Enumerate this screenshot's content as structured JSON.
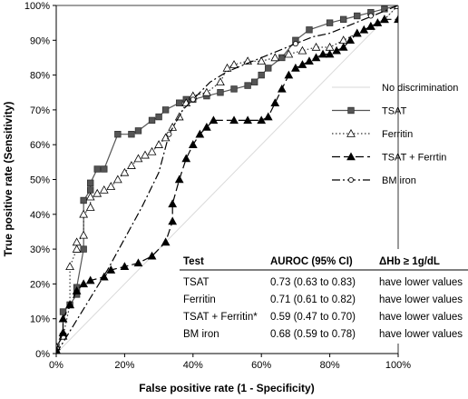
{
  "chart_data": {
    "type": "line",
    "xlabel": "False positive rate (1 - Specificity)",
    "ylabel": "True positive rate (Sensitivity)",
    "xlim": [
      0,
      100
    ],
    "ylim": [
      0,
      100
    ],
    "xticks": [
      "0%",
      "20%",
      "40%",
      "60%",
      "80%",
      "100%"
    ],
    "yticks": [
      "0%",
      "10%",
      "20%",
      "30%",
      "40%",
      "50%",
      "60%",
      "70%",
      "80%",
      "90%",
      "100%"
    ],
    "grid": false,
    "legend_position": "right",
    "reference_line": {
      "name": "No discrimination",
      "x": [
        0,
        100
      ],
      "y": [
        0,
        100
      ],
      "color": "#d9d9d9"
    },
    "series": [
      {
        "name": "TSAT",
        "marker": "square-filled",
        "line": "solid",
        "color": "#555555",
        "x": [
          0,
          0,
          2,
          2,
          4,
          6,
          6,
          8,
          8,
          10,
          10,
          12,
          14,
          18,
          22,
          24,
          28,
          30,
          32,
          36,
          38,
          40,
          44,
          48,
          52,
          56,
          58,
          60,
          62,
          66,
          70,
          74,
          80,
          84,
          88,
          92,
          96,
          100
        ],
        "y": [
          0,
          2,
          5,
          12,
          14,
          17,
          19,
          30,
          44,
          47,
          49,
          53,
          53,
          63,
          63,
          64,
          67,
          68,
          70,
          72,
          73,
          73,
          74,
          75,
          76,
          77,
          78,
          80,
          82,
          85,
          90,
          93,
          95,
          96,
          97,
          98,
          99,
          100
        ]
      },
      {
        "name": "Ferritin",
        "marker": "triangle-open",
        "line": "dotted",
        "color": "#333333",
        "x": [
          0,
          0,
          2,
          4,
          4,
          6,
          6,
          8,
          8,
          10,
          10,
          12,
          14,
          16,
          18,
          20,
          22,
          24,
          26,
          28,
          30,
          32,
          34,
          36,
          38,
          40,
          44,
          48,
          50,
          52,
          56,
          60,
          64,
          68,
          72,
          76,
          80,
          84,
          88,
          92,
          96,
          100
        ],
        "y": [
          0,
          2,
          5,
          14,
          25,
          30,
          32,
          34,
          40,
          42,
          45,
          46,
          47,
          48,
          50,
          52,
          54,
          56,
          57,
          58,
          60,
          62,
          65,
          68,
          72,
          74,
          75,
          78,
          82,
          83,
          84,
          84,
          85,
          86,
          87,
          88,
          88,
          90,
          92,
          94,
          96,
          100
        ]
      },
      {
        "name": "TSAT + Ferrtin",
        "marker": "triangle-filled",
        "line": "dashed",
        "color": "#000000",
        "x": [
          0,
          0,
          2,
          2,
          4,
          6,
          8,
          10,
          14,
          16,
          20,
          24,
          28,
          32,
          34,
          34,
          36,
          38,
          40,
          42,
          44,
          46,
          52,
          56,
          60,
          62,
          64,
          66,
          68,
          70,
          72,
          74,
          76,
          78,
          80,
          82,
          84,
          86,
          88,
          90,
          92,
          94,
          96,
          100
        ],
        "y": [
          0,
          1,
          6,
          10,
          14,
          18,
          20,
          21,
          22,
          24,
          25,
          26,
          28,
          32,
          38,
          43,
          50,
          56,
          60,
          63,
          65,
          67,
          67,
          67,
          67,
          68,
          72,
          76,
          80,
          82,
          83,
          84,
          85,
          86,
          86,
          87,
          88,
          90,
          92,
          93,
          94,
          95,
          96,
          96
        ]
      },
      {
        "name": "BM iron",
        "marker": "circle-open",
        "line": "dash-dot",
        "color": "#000000",
        "x": [
          0,
          5,
          10,
          15,
          20,
          25,
          30,
          33,
          37,
          40,
          45,
          50,
          55,
          60,
          65,
          70,
          75,
          80,
          85,
          90,
          95,
          100
        ],
        "y": [
          0,
          8,
          16,
          24,
          33,
          42,
          52,
          63,
          70,
          73,
          78,
          81,
          83,
          85,
          87,
          89,
          91,
          92,
          94,
          96,
          98,
          100
        ]
      }
    ],
    "table": {
      "headers": [
        "Test",
        "AUROC (95% CI)",
        "ΔHb ≥ 1g/dL"
      ],
      "rows": [
        [
          "TSAT",
          "0.73 (0.63 to 0.83)",
          "have lower values"
        ],
        [
          "Ferritin",
          "0.71 (0.61 to 0.82)",
          "have lower values"
        ],
        [
          "TSAT + Ferritin*",
          "0.59 (0.47 to 0.70)",
          "have lower values"
        ],
        [
          "BM iron",
          "0.68 (0.59 to 0.78)",
          "have lower values"
        ]
      ]
    }
  }
}
